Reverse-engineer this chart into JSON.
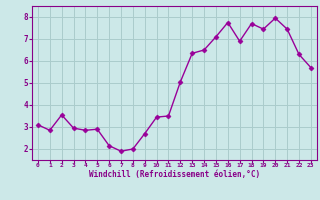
{
  "x": [
    0,
    1,
    2,
    3,
    4,
    5,
    6,
    7,
    8,
    9,
    10,
    11,
    12,
    13,
    14,
    15,
    16,
    17,
    18,
    19,
    20,
    21,
    22,
    23
  ],
  "y": [
    3.1,
    2.85,
    3.55,
    2.95,
    2.85,
    2.9,
    2.15,
    1.9,
    2.0,
    2.7,
    3.45,
    3.5,
    5.05,
    6.35,
    6.5,
    7.1,
    7.75,
    6.9,
    7.7,
    7.45,
    7.95,
    7.45,
    6.3,
    5.7
  ],
  "line_color": "#990099",
  "marker": "D",
  "marker_size": 2.5,
  "line_width": 1.0,
  "bg_color": "#cce8e8",
  "grid_color": "#aacccc",
  "xlabel": "Windchill (Refroidissement éolien,°C)",
  "xlabel_color": "#880088",
  "tick_color": "#880088",
  "ylim": [
    1.5,
    8.5
  ],
  "xlim": [
    -0.5,
    23.5
  ],
  "yticks": [
    2,
    3,
    4,
    5,
    6,
    7,
    8
  ],
  "xticks": [
    0,
    1,
    2,
    3,
    4,
    5,
    6,
    7,
    8,
    9,
    10,
    11,
    12,
    13,
    14,
    15,
    16,
    17,
    18,
    19,
    20,
    21,
    22,
    23
  ]
}
